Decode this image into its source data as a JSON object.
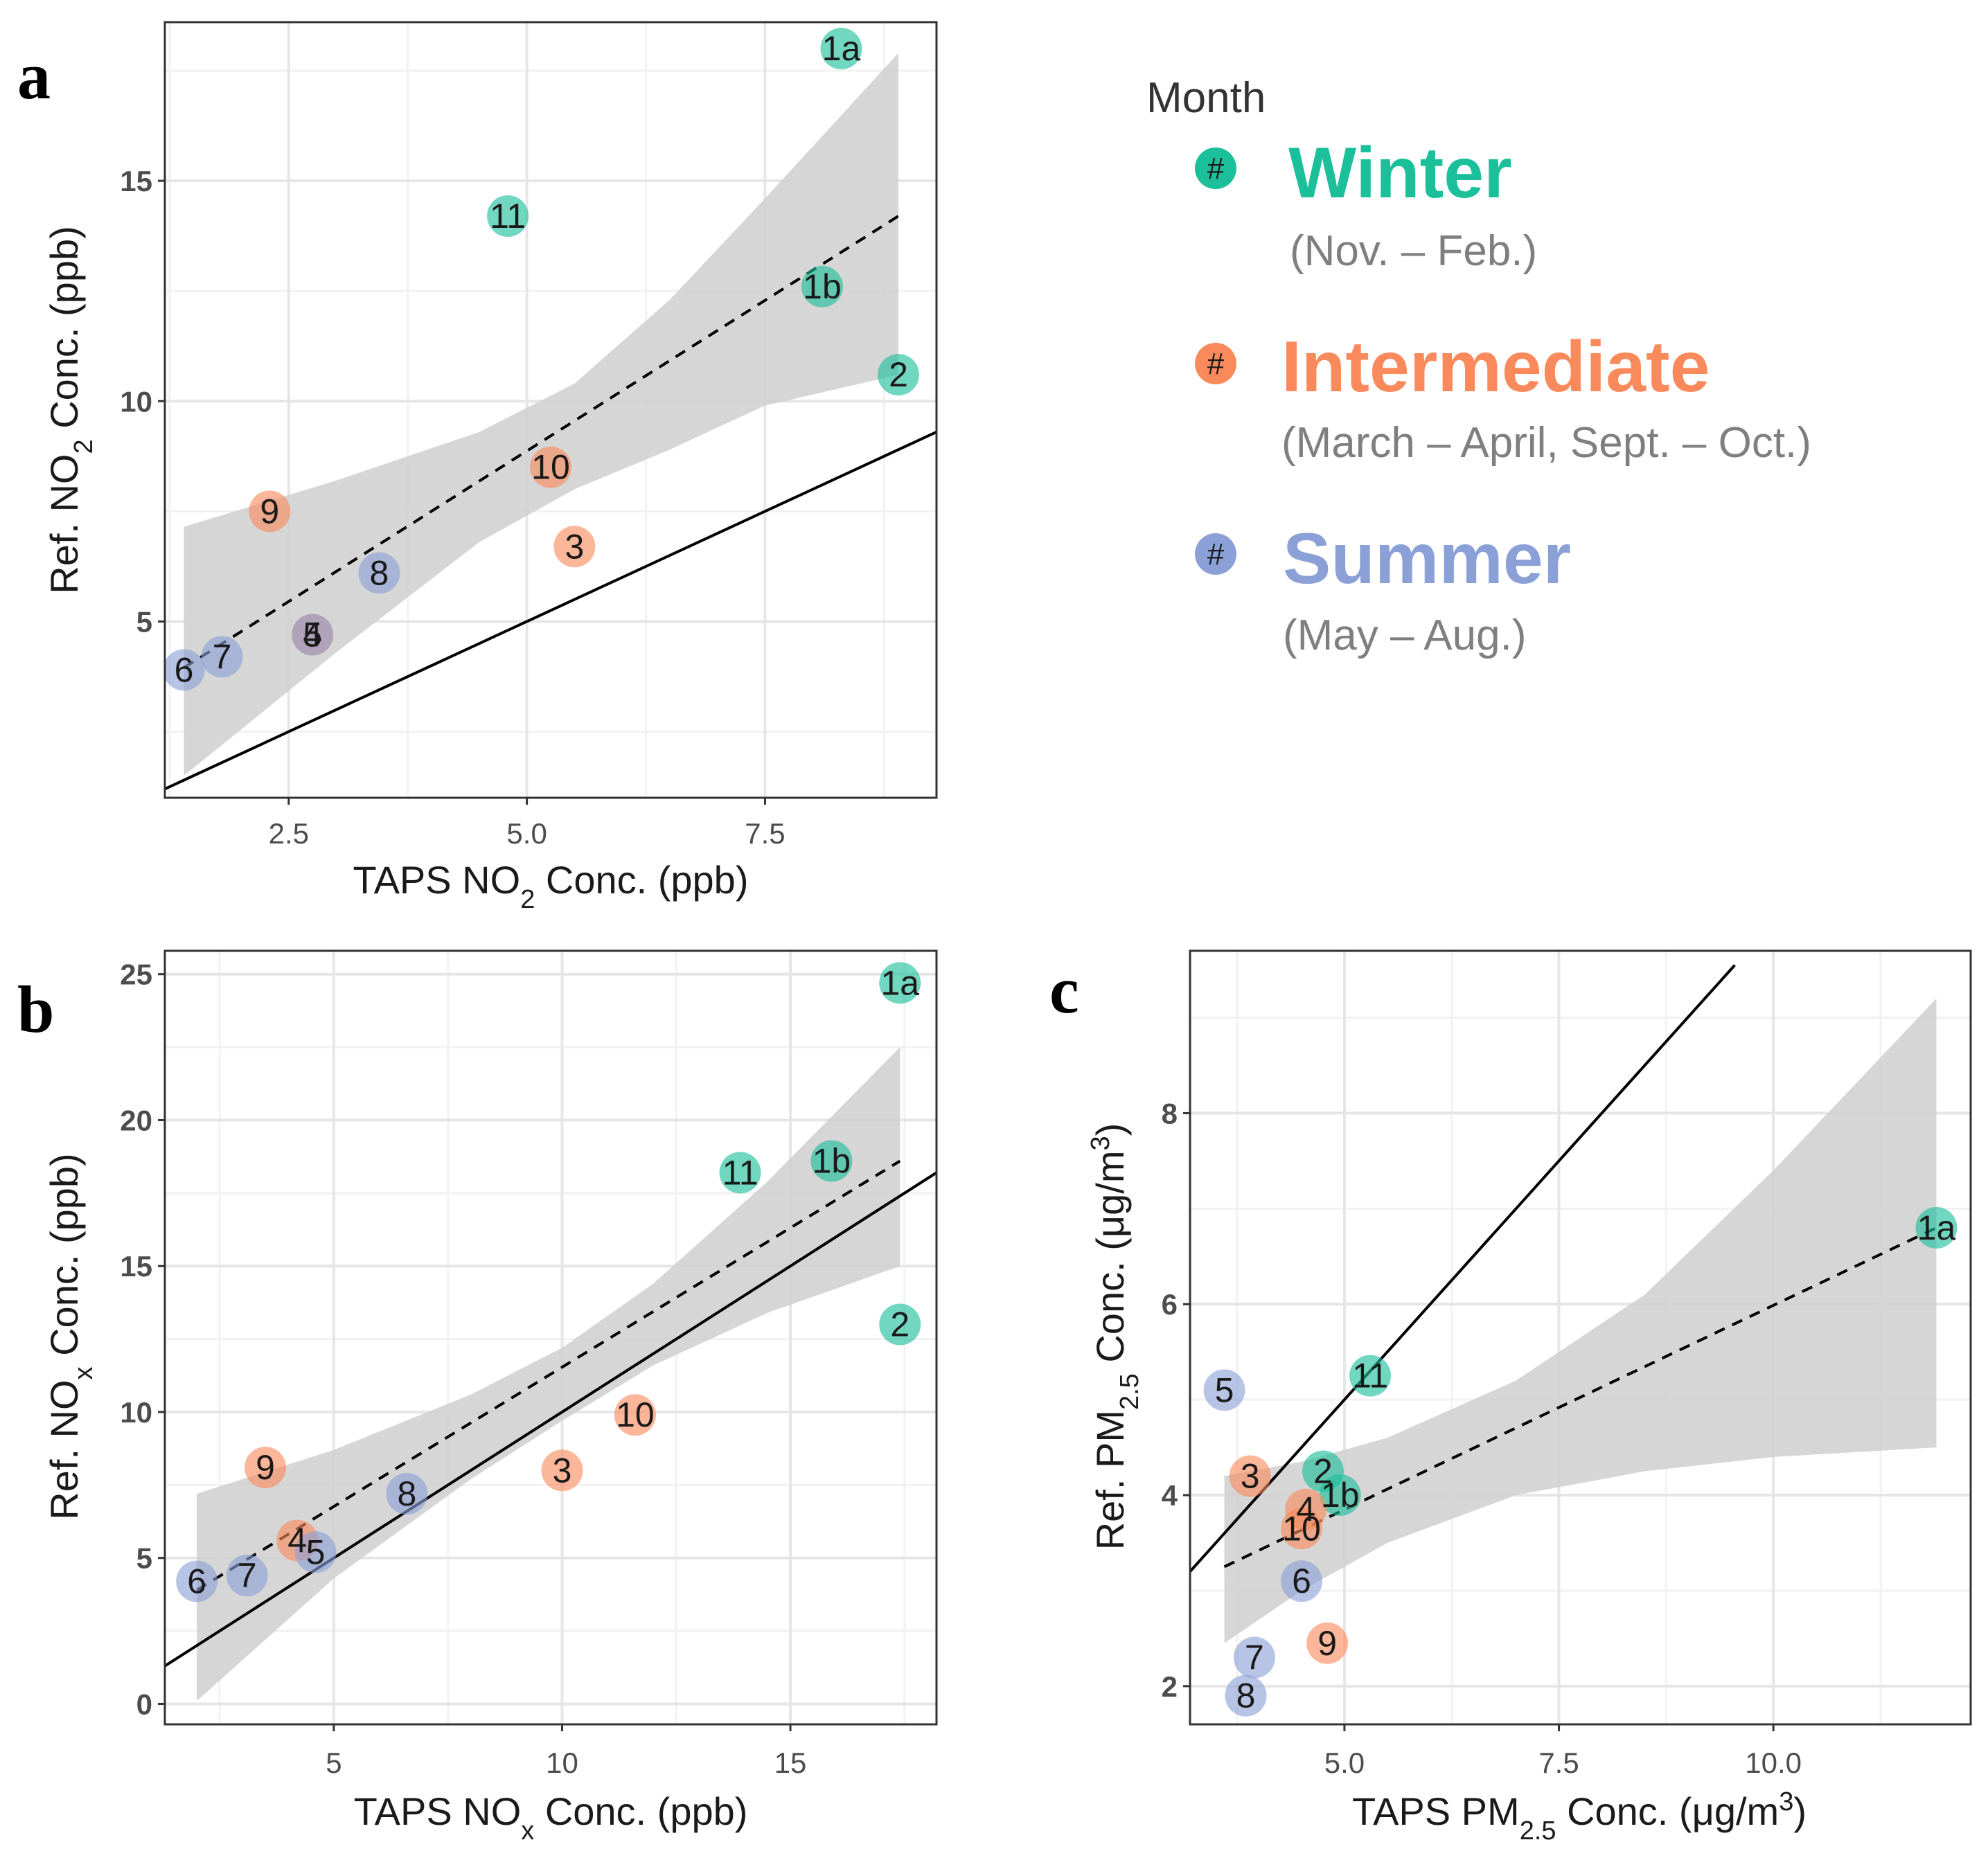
{
  "colors": {
    "winter": "#1bbf9a",
    "intermediate": "#fa8a5c",
    "summer": "#8aa0d6",
    "ribbon": "#cfcfcf",
    "grid_major": "#e6e6e6",
    "grid_minor": "#f2f2f2",
    "frame": "#333333"
  },
  "legend": {
    "title": "Month",
    "hash_symbol": "#",
    "items": [
      {
        "name": "Winter",
        "months": "(Nov. – Feb.)",
        "season": "winter"
      },
      {
        "name": "Intermediate",
        "months": "(March –  April, Sept. – Oct.)",
        "season": "intermediate"
      },
      {
        "name": "Summer",
        "months": "(May – Aug.)",
        "season": "summer"
      }
    ]
  },
  "chart_data": [
    {
      "panel": "a",
      "type": "scatter",
      "xlabel": {
        "pre": "TAPS NO",
        "sub": "2",
        "post": " Conc. (ppb)"
      },
      "ylabel": {
        "pre": "Ref. NO",
        "sub": "2",
        "post": " Conc. (ppb)"
      },
      "xlim": [
        1.2,
        9.3
      ],
      "ylim": [
        1.0,
        18.6
      ],
      "xticks": [
        {
          "v": 2.5,
          "label": "2.5"
        },
        {
          "v": 5.0,
          "label": "5.0"
        },
        {
          "v": 7.5,
          "label": "7.5"
        }
      ],
      "yticks": [
        {
          "v": 5,
          "label": "5"
        },
        {
          "v": 10,
          "label": "10"
        },
        {
          "v": 15,
          "label": "15"
        }
      ],
      "points": [
        {
          "label": "1a",
          "x": 8.3,
          "y": 18.0,
          "season": "winter"
        },
        {
          "label": "11",
          "x": 4.8,
          "y": 14.2,
          "season": "winter"
        },
        {
          "label": "1b",
          "x": 8.1,
          "y": 12.6,
          "season": "winter"
        },
        {
          "label": "2",
          "x": 8.9,
          "y": 10.6,
          "season": "winter"
        },
        {
          "label": "10",
          "x": 5.25,
          "y": 8.5,
          "season": "intermediate"
        },
        {
          "label": "9",
          "x": 2.3,
          "y": 7.5,
          "season": "intermediate"
        },
        {
          "label": "3",
          "x": 5.5,
          "y": 6.7,
          "season": "intermediate"
        },
        {
          "label": "8",
          "x": 3.45,
          "y": 6.1,
          "season": "summer"
        },
        {
          "label": "4",
          "x": 2.75,
          "y": 4.7,
          "season": "intermediate"
        },
        {
          "label": "5",
          "x": 2.75,
          "y": 4.7,
          "season": "summer"
        },
        {
          "label": "7",
          "x": 1.8,
          "y": 4.2,
          "season": "summer"
        },
        {
          "label": "6",
          "x": 1.4,
          "y": 3.9,
          "season": "summer"
        }
      ],
      "one_to_one": [
        [
          1.2,
          1.2
        ],
        [
          9.3,
          9.3
        ]
      ],
      "fit_line": [
        [
          1.4,
          3.95
        ],
        [
          8.9,
          14.2
        ]
      ],
      "ribbon": [
        [
          1.4,
          7.15,
          1.5
        ],
        [
          3.0,
          8.2,
          4.3
        ],
        [
          4.5,
          9.3,
          6.8
        ],
        [
          5.5,
          10.4,
          8.0
        ],
        [
          6.5,
          12.3,
          8.9
        ],
        [
          7.5,
          14.6,
          9.9
        ],
        [
          8.9,
          17.9,
          10.6
        ]
      ]
    },
    {
      "panel": "b",
      "type": "scatter",
      "xlabel": {
        "pre": "TAPS NO",
        "sub": "x",
        "post": " Conc. (ppb)"
      },
      "ylabel": {
        "pre": "Ref. NO",
        "sub": "x",
        "post": " Conc. (ppb)"
      },
      "xlim": [
        1.3,
        18.2
      ],
      "ylim": [
        -0.7,
        25.8
      ],
      "xticks": [
        {
          "v": 5,
          "label": "5"
        },
        {
          "v": 10,
          "label": "10"
        },
        {
          "v": 15,
          "label": "15"
        }
      ],
      "yticks": [
        {
          "v": 0,
          "label": "0"
        },
        {
          "v": 5,
          "label": "5"
        },
        {
          "v": 10,
          "label": "10"
        },
        {
          "v": 15,
          "label": "15"
        },
        {
          "v": 20,
          "label": "20"
        },
        {
          "v": 25,
          "label": "25"
        }
      ],
      "points": [
        {
          "label": "1a",
          "x": 17.4,
          "y": 24.7,
          "season": "winter"
        },
        {
          "label": "1b",
          "x": 15.9,
          "y": 18.6,
          "season": "winter"
        },
        {
          "label": "11",
          "x": 13.9,
          "y": 18.2,
          "season": "winter"
        },
        {
          "label": "2",
          "x": 17.4,
          "y": 13.0,
          "season": "winter"
        },
        {
          "label": "10",
          "x": 11.6,
          "y": 9.9,
          "season": "intermediate"
        },
        {
          "label": "3",
          "x": 10.0,
          "y": 8.0,
          "season": "intermediate"
        },
        {
          "label": "9",
          "x": 3.5,
          "y": 8.1,
          "season": "intermediate"
        },
        {
          "label": "8",
          "x": 6.6,
          "y": 7.2,
          "season": "summer"
        },
        {
          "label": "4",
          "x": 4.2,
          "y": 5.6,
          "season": "intermediate"
        },
        {
          "label": "5",
          "x": 4.6,
          "y": 5.2,
          "season": "summer"
        },
        {
          "label": "7",
          "x": 3.1,
          "y": 4.4,
          "season": "summer"
        },
        {
          "label": "6",
          "x": 2.0,
          "y": 4.2,
          "season": "summer"
        }
      ],
      "one_to_one": [
        [
          1.3,
          1.3
        ],
        [
          18.2,
          18.2
        ]
      ],
      "fit_line": [
        [
          2.0,
          3.9
        ],
        [
          17.4,
          18.6
        ]
      ],
      "ribbon": [
        [
          2.0,
          7.2,
          0.1
        ],
        [
          5.0,
          8.7,
          4.3
        ],
        [
          8.0,
          10.6,
          7.7
        ],
        [
          10.0,
          12.2,
          9.7
        ],
        [
          12.0,
          14.4,
          11.6
        ],
        [
          14.5,
          17.9,
          13.4
        ],
        [
          17.4,
          22.5,
          15.0
        ]
      ]
    },
    {
      "panel": "c",
      "type": "scatter",
      "xlabel": {
        "pre": "TAPS PM",
        "sub": "2.5",
        "post": " Conc. (μg/m",
        "sup": "3",
        "post2": ")"
      },
      "ylabel": {
        "pre": "Ref. PM",
        "sub": "2.5",
        "post": " Conc. (μg/m",
        "sup": "3",
        "post2": ")"
      },
      "xlim": [
        3.2,
        12.3
      ],
      "ylim": [
        1.6,
        9.7
      ],
      "xticks": [
        {
          "v": 5.0,
          "label": "5.0"
        },
        {
          "v": 7.5,
          "label": "7.5"
        },
        {
          "v": 10.0,
          "label": "10.0"
        }
      ],
      "yticks": [
        {
          "v": 2,
          "label": "2"
        },
        {
          "v": 4,
          "label": "4"
        },
        {
          "v": 6,
          "label": "6"
        },
        {
          "v": 8,
          "label": "8"
        }
      ],
      "points": [
        {
          "label": "1a",
          "x": 11.9,
          "y": 6.8,
          "season": "winter"
        },
        {
          "label": "11",
          "x": 5.3,
          "y": 5.25,
          "season": "winter"
        },
        {
          "label": "5",
          "x": 3.6,
          "y": 5.1,
          "season": "summer"
        },
        {
          "label": "3",
          "x": 3.9,
          "y": 4.2,
          "season": "intermediate"
        },
        {
          "label": "2",
          "x": 4.75,
          "y": 4.25,
          "season": "winter"
        },
        {
          "label": "1b",
          "x": 4.95,
          "y": 4.0,
          "season": "winter"
        },
        {
          "label": "4",
          "x": 4.55,
          "y": 3.85,
          "season": "intermediate"
        },
        {
          "label": "10",
          "x": 4.5,
          "y": 3.65,
          "season": "intermediate"
        },
        {
          "label": "6",
          "x": 4.5,
          "y": 3.1,
          "season": "summer"
        },
        {
          "label": "9",
          "x": 4.8,
          "y": 2.45,
          "season": "intermediate"
        },
        {
          "label": "7",
          "x": 3.95,
          "y": 2.3,
          "season": "summer"
        },
        {
          "label": "8",
          "x": 3.85,
          "y": 1.9,
          "season": "summer"
        }
      ],
      "one_to_one": [
        [
          3.2,
          3.2
        ],
        [
          9.55,
          9.55
        ]
      ],
      "fit_line": [
        [
          3.6,
          3.25
        ],
        [
          11.9,
          6.8
        ]
      ],
      "ribbon": [
        [
          3.6,
          4.2,
          2.45
        ],
        [
          4.5,
          4.35,
          3.0
        ],
        [
          5.5,
          4.6,
          3.5
        ],
        [
          7.0,
          5.2,
          4.0
        ],
        [
          8.5,
          6.1,
          4.25
        ],
        [
          10.0,
          7.4,
          4.4
        ],
        [
          11.9,
          9.2,
          4.5
        ]
      ]
    }
  ]
}
